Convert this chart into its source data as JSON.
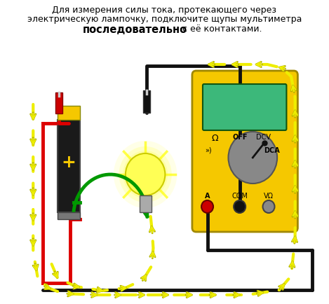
{
  "title_line1": "Для измерения силы тока, протекающего через",
  "title_line2": "электрическую лампочку, подключите щупы мультиметра",
  "title_bold": "последовательно",
  "title_rest": " с её контактами.",
  "bg_color": "#ffffff",
  "multimeter_body": "#f5c800",
  "multimeter_screen": "#3cb87a",
  "multimeter_knob": "#909090",
  "battery_body": "#1a1a1a",
  "battery_cap": "#f5c800",
  "bulb_fill": "#ffff55",
  "bulb_edge": "#cccc00",
  "wire_red": "#dd0000",
  "wire_green": "#009900",
  "wire_black": "#111111",
  "arrow_fill": "#eeee00",
  "arrow_edge": "#aaaa00",
  "probe_red": "#cc0000",
  "probe_black": "#111111"
}
